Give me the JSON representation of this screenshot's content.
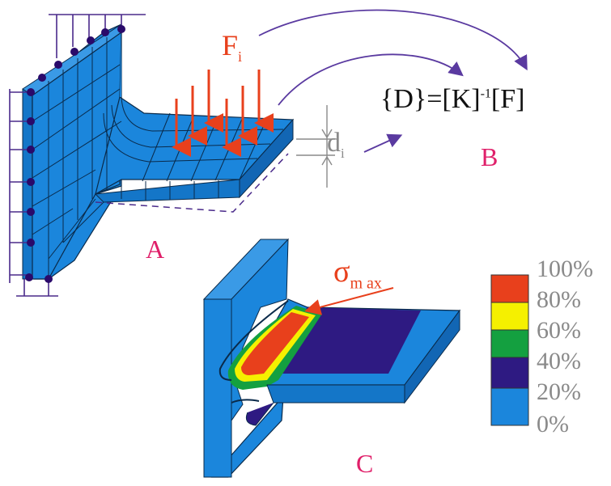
{
  "labels": {
    "part_a": "A",
    "part_b": "B",
    "part_c": "C",
    "force": "F",
    "force_sub": "i",
    "displacement": "d",
    "displacement_sub": "i",
    "sigma": "σ",
    "sigma_sub": "m ax"
  },
  "equation": {
    "lhs": "{D}=[K]",
    "exponent": "-1",
    "rhs": "[F]"
  },
  "legend": {
    "levels": [
      {
        "label": "100%",
        "color": "#e8401c"
      },
      {
        "label": "80%",
        "color": "#f5f000"
      },
      {
        "label": "60%",
        "color": "#14a040"
      },
      {
        "label": "40%",
        "color": "#2e1a82"
      },
      {
        "label": "20%",
        "color": "#1b86dc"
      },
      {
        "label": "0%",
        "color": ""
      }
    ]
  },
  "colors": {
    "mesh_blue": "#1b86dc",
    "mesh_line": "#0a2a4a",
    "force_arrow": "#e8401c",
    "constraint": "#4a2a8a",
    "label_magenta": "#e0206a",
    "flow_arrow": "#5a3aa0"
  }
}
